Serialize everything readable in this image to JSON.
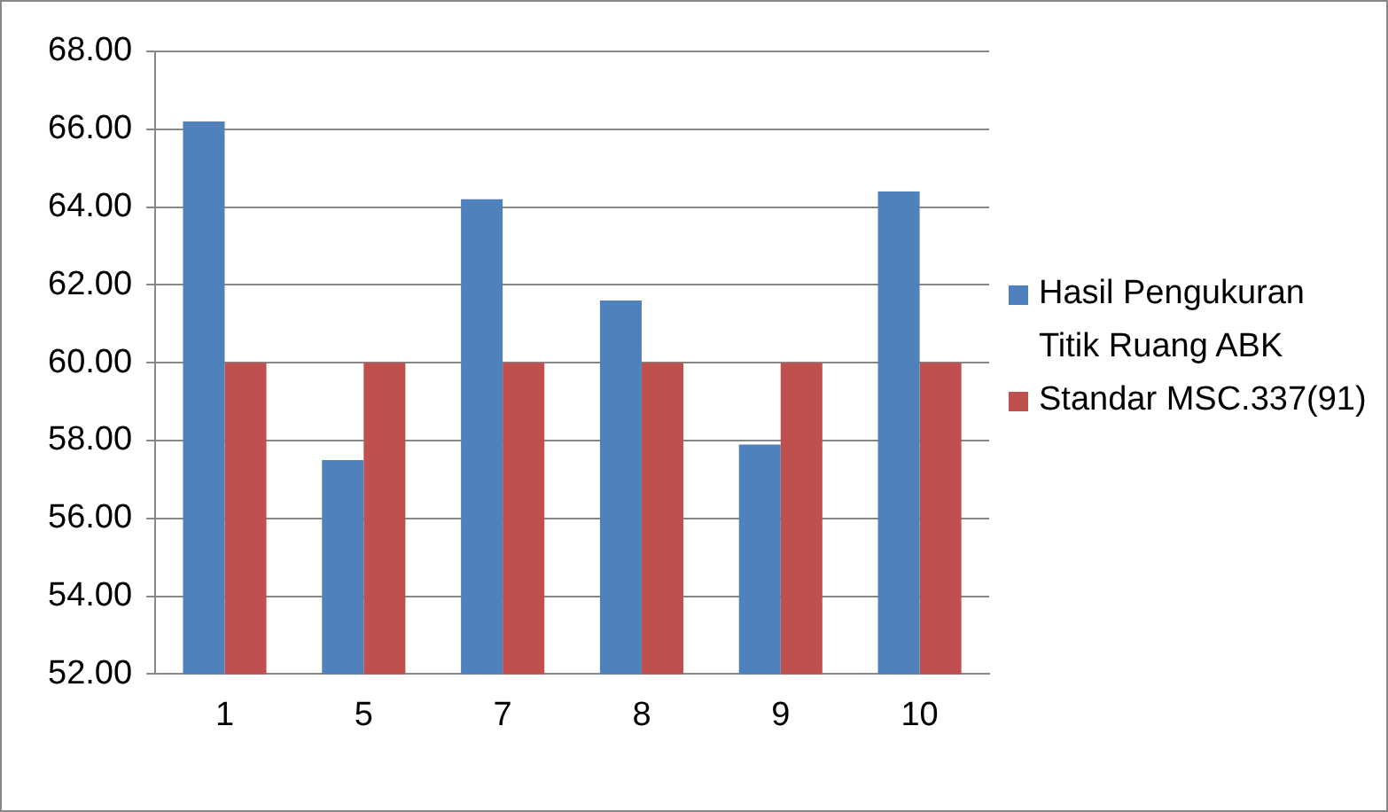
{
  "chart_data": {
    "type": "bar",
    "categories": [
      "1",
      "5",
      "7",
      "8",
      "9",
      "10"
    ],
    "series": [
      {
        "name": "Hasil Pengukuran Titik Ruang ABK",
        "color": "#4f81bd",
        "values": [
          66.2,
          57.5,
          64.2,
          61.6,
          57.9,
          64.4
        ]
      },
      {
        "name": "Standar MSC.337(91)",
        "color": "#c0504d",
        "values": [
          60,
          60,
          60,
          60,
          60,
          60
        ]
      }
    ],
    "ylim": [
      52,
      68
    ],
    "yticks": [
      {
        "value": 52,
        "label": "52.00"
      },
      {
        "value": 54,
        "label": "54.00"
      },
      {
        "value": 56,
        "label": "56.00"
      },
      {
        "value": 58,
        "label": "58.00"
      },
      {
        "value": 60,
        "label": "60.00"
      },
      {
        "value": 62,
        "label": "62.00"
      },
      {
        "value": 64,
        "label": "64.00"
      },
      {
        "value": 66,
        "label": "66.00"
      },
      {
        "value": 68,
        "label": "68.00"
      }
    ],
    "grid": "y",
    "legend": "right"
  }
}
